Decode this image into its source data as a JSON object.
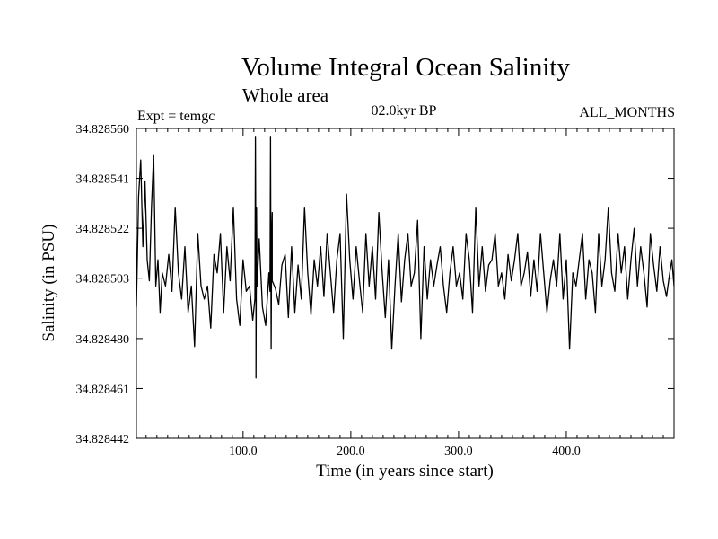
{
  "chart_data": {
    "type": "line",
    "title": "Volume Integral Ocean Salinity",
    "subtitle": "Whole area",
    "annotations": {
      "left": "Expt = temgc",
      "center": "02.0kyr BP",
      "right": "ALL_MONTHS"
    },
    "xlabel": "Time (in years since start)",
    "ylabel": "Salinity (in PSU)",
    "xlim": [
      1,
      500
    ],
    "ylim": [
      34.828442,
      34.82856
    ],
    "xticks": [
      100,
      200,
      300,
      400
    ],
    "xtick_labels": [
      "100.0",
      "200.0",
      "300.0",
      "400.0"
    ],
    "yticks": [
      34.828442,
      34.828461,
      34.82848,
      34.828503,
      34.828522,
      34.828541,
      34.82856
    ],
    "ytick_labels": [
      "34.828442",
      "34.828461",
      "34.828480",
      "34.828503",
      "34.828522",
      "34.828541",
      "34.828560"
    ],
    "series": [
      {
        "name": "Salinity",
        "x": [
          1,
          3,
          5,
          7,
          9,
          11,
          13,
          15,
          17,
          19,
          21,
          23,
          25,
          28,
          31,
          34,
          37,
          40,
          43,
          46,
          49,
          52,
          55,
          58,
          61,
          64,
          67,
          70,
          73,
          76,
          79,
          82,
          85,
          88,
          91,
          94,
          97,
          100,
          103,
          106,
          109,
          112,
          115,
          118,
          121,
          124,
          127,
          130,
          133,
          136,
          139,
          142,
          145,
          148,
          151,
          154,
          157,
          160,
          163,
          166,
          169,
          172,
          175,
          178,
          181,
          184,
          187,
          190,
          193,
          196,
          199,
          202,
          205,
          208,
          211,
          214,
          217,
          220,
          223,
          226,
          229,
          232,
          235,
          238,
          241,
          244,
          247,
          250,
          253,
          256,
          259,
          262,
          265,
          268,
          271,
          274,
          277,
          280,
          283,
          286,
          289,
          292,
          295,
          298,
          301,
          304,
          307,
          310,
          313,
          316,
          319,
          322,
          325,
          328,
          331,
          334,
          337,
          340,
          343,
          346,
          349,
          352,
          355,
          358,
          361,
          364,
          367,
          370,
          373,
          376,
          379,
          382,
          385,
          388,
          391,
          394,
          397,
          400,
          403,
          406,
          409,
          412,
          415,
          418,
          421,
          424,
          427,
          430,
          433,
          436,
          439,
          442,
          445,
          448,
          451,
          454,
          457,
          460,
          463,
          466,
          469,
          472,
          475,
          478,
          481,
          484,
          487,
          490,
          493,
          496,
          498,
          500
        ],
        "values": [
          34.828492,
          34.828534,
          34.828548,
          34.828515,
          34.82854,
          34.82851,
          34.828502,
          34.82853,
          34.82855,
          34.8285,
          34.82851,
          34.82849,
          34.828505,
          34.8285,
          34.828512,
          34.828498,
          34.82853,
          34.828505,
          34.828495,
          34.828515,
          34.82849,
          34.8285,
          34.828477,
          34.82852,
          34.8285,
          34.828495,
          34.8285,
          34.828484,
          34.828512,
          34.828505,
          34.82852,
          34.82849,
          34.828515,
          34.828502,
          34.82853,
          34.828495,
          34.828485,
          34.82851,
          34.828498,
          34.8285,
          34.828487,
          34.8285,
          34.828518,
          34.828492,
          34.828485,
          34.828505,
          34.828528,
          34.828499,
          34.828493,
          34.828508,
          34.828512,
          34.828488,
          34.828515,
          34.82849,
          34.828508,
          34.828495,
          34.82853,
          34.828505,
          34.828489,
          34.82851,
          34.8285,
          34.828515,
          34.828496,
          34.82852,
          34.828505,
          34.82849,
          34.82851,
          34.82852,
          34.82848,
          34.828535,
          34.82851,
          34.828495,
          34.828515,
          34.828502,
          34.82849,
          34.82852,
          34.8285,
          34.828515,
          34.828495,
          34.828528,
          34.828506,
          34.828488,
          34.82851,
          34.828476,
          34.8285,
          34.82852,
          34.828494,
          34.82851,
          34.82852,
          34.8285,
          34.828505,
          34.828525,
          34.82848,
          34.828515,
          34.828495,
          34.82851,
          34.8285,
          34.828508,
          34.828515,
          34.8285,
          34.82849,
          34.828505,
          34.828515,
          34.8285,
          34.828505,
          34.828495,
          34.82852,
          34.82851,
          34.82849,
          34.82853,
          34.8285,
          34.828515,
          34.828498,
          34.828508,
          34.82851,
          34.82852,
          34.8285,
          34.828505,
          34.828495,
          34.828512,
          34.828502,
          34.82851,
          34.82852,
          34.8285,
          34.828505,
          34.828513,
          34.828496,
          34.82851,
          34.828498,
          34.82852,
          34.828505,
          34.82849,
          34.828502,
          34.82851,
          34.8285,
          34.82852,
          34.828495,
          34.82851,
          34.828476,
          34.828505,
          34.8285,
          34.82851,
          34.82852,
          34.828495,
          34.82851,
          34.828505,
          34.82849,
          34.82852,
          34.8285,
          34.82851,
          34.82853,
          34.828505,
          34.828498,
          34.82852,
          34.828505,
          34.828515,
          34.828495,
          34.82851,
          34.828522,
          34.8285,
          34.828515,
          34.828505,
          34.828492,
          34.82852,
          34.828508,
          34.828498,
          34.828515,
          34.828502,
          34.828496,
          34.828505,
          34.82851,
          34.8285
        ],
        "color": "#000000"
      }
    ],
    "spikes": [
      {
        "x": 112,
        "values": [
          34.828495,
          34.828557,
          34.828465,
          34.82853,
          34.8285
        ]
      },
      {
        "x": 126,
        "values": [
          34.828498,
          34.828557,
          34.828476,
          34.82852,
          34.828502
        ]
      }
    ],
    "grid": false
  }
}
